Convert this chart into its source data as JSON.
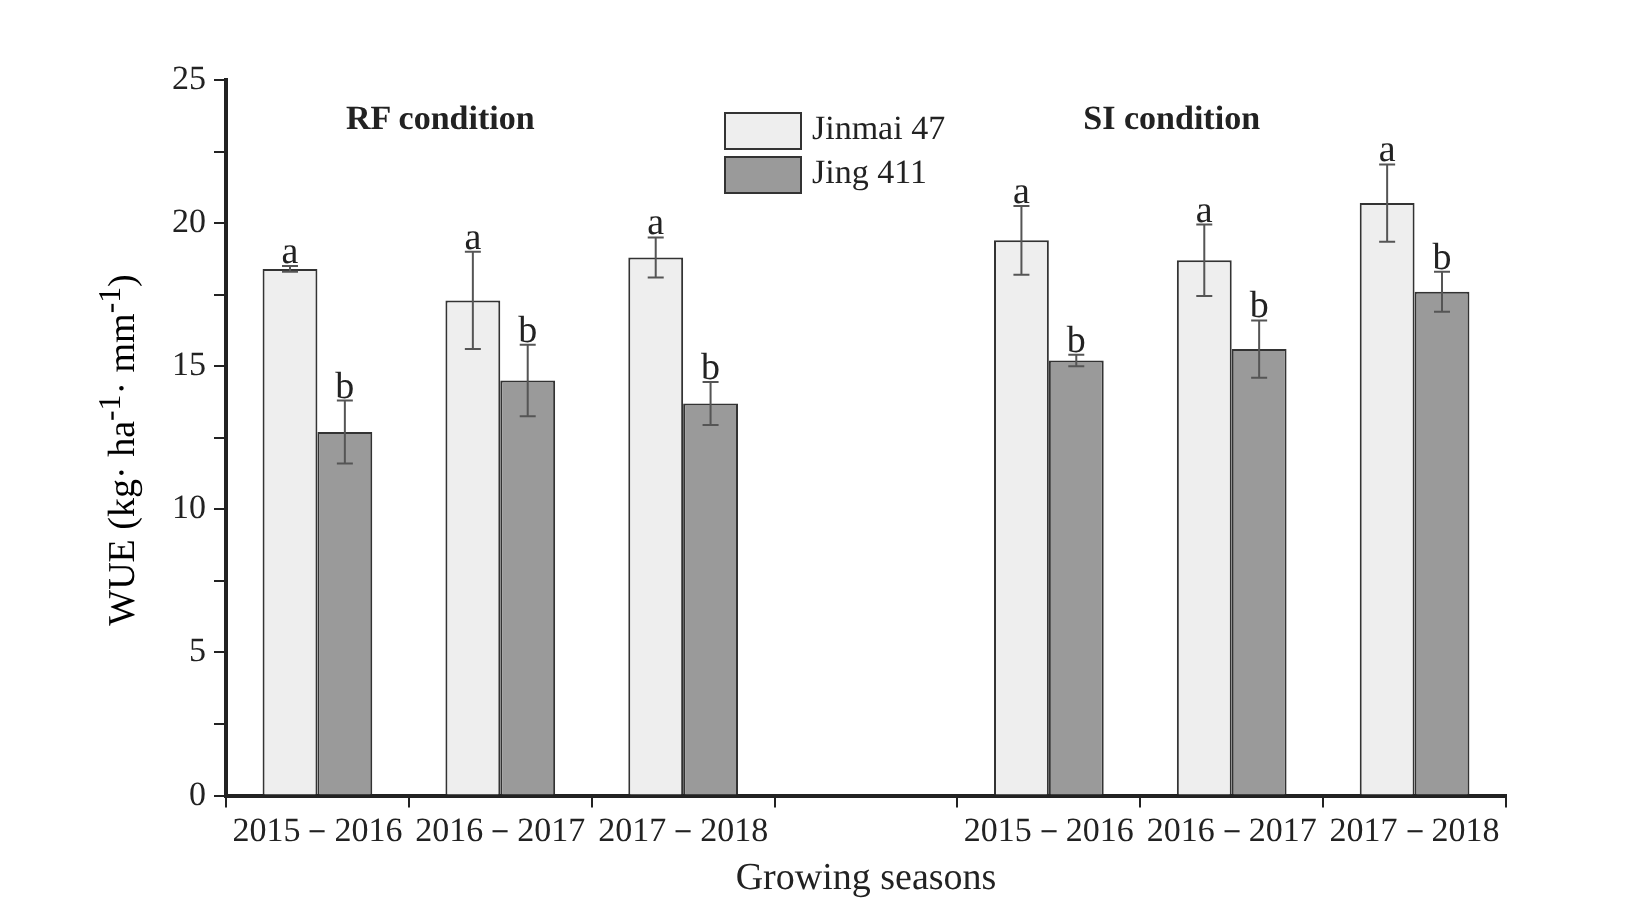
{
  "chart_data": {
    "type": "bar",
    "categories": [
      "2015－2016",
      "2016－2017",
      "2017－2018",
      null,
      "2015－2016",
      "2016－2017",
      "2017－2018"
    ],
    "series": [
      {
        "name": "Jinmai 47",
        "color": "#eeeeee",
        "values": [
          18.4,
          17.3,
          18.8,
          null,
          19.4,
          18.7,
          20.7
        ],
        "errors": [
          0.1,
          1.7,
          0.7,
          null,
          1.2,
          1.25,
          1.35
        ]
      },
      {
        "name": "Jing 411",
        "color": "#9a9a9a",
        "values": [
          12.7,
          14.5,
          13.7,
          null,
          15.2,
          15.6,
          17.6
        ],
        "errors": [
          1.1,
          1.25,
          0.75,
          null,
          0.2,
          1.0,
          0.7
        ]
      }
    ],
    "xlabel": "Growing seasons",
    "ylabel": "WUE (kg· ha$^{-1}$· mm$^{-1}$)",
    "ylim": [
      0,
      25
    ],
    "yticks": [
      0,
      {
        "value": 2.5,
        "label": null
      },
      5,
      {
        "value": 7.5,
        "label": null
      },
      10,
      {
        "value": 12.5,
        "label": null
      },
      15,
      {
        "value": 17.5,
        "label": null
      },
      20,
      {
        "value": 22.5,
        "label": null
      },
      25
    ],
    "annotations": [
      "RF condition",
      "SI condition",
      "a",
      "b",
      "a",
      "b",
      "a",
      "b",
      "a",
      "b",
      "a",
      "b",
      "a",
      "b"
    ],
    "legend": "top",
    "grid": false
  }
}
